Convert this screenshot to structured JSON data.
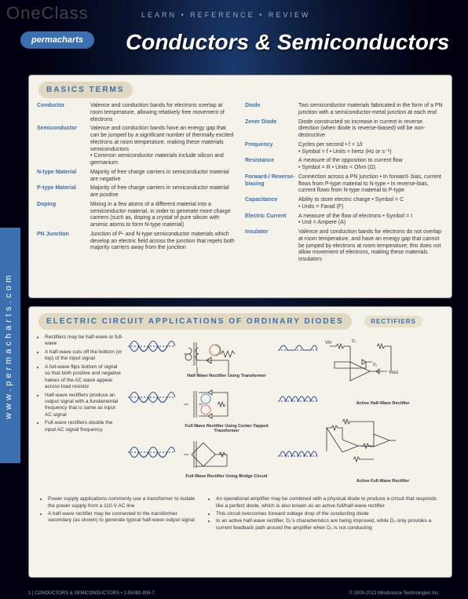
{
  "watermark": "OneClass",
  "nav": "LEARN  •  REFERENCE  •  REVIEW",
  "logo": "permacharts",
  "title": "Conductors & Semiconductors",
  "sidebar": "www.permacharts.com",
  "basics": {
    "header": "BASICS TERMS",
    "left": [
      {
        "label": "Conductor",
        "def": "Valence and conduction bands for electrons overlap at room temperature, allowing relatively free movement of electrons"
      },
      {
        "label": "Semiconductor",
        "def": "Valence and conduction bands have an energy gap that can be jumped by a significant number of thermally excited electrons at room temperature, making these materials semiconductors",
        "sub": "• Common semiconductor materials include silicon and germanium"
      },
      {
        "label": "N-type Material",
        "def": "Majority of free charge carriers in semiconductor material are negative"
      },
      {
        "label": "P-type Material",
        "def": "Majority of free charge carriers in semiconductor material are positive"
      },
      {
        "label": "Doping",
        "def": "Mixing in a few atoms of a different material into a semiconductor material, in order to generate more charge carriers (such as, doping a crystal of pure silicon with arsenic atoms to form N-type material)"
      },
      {
        "label": "PN Junction",
        "def": "Junction of P- and N-type semiconductor materials which develop an electric field across the junction that repels both majority carriers away from the junction"
      }
    ],
    "right": [
      {
        "label": "Diode",
        "def": "Two semiconductor materials fabricated in the form of a PN junction with a semiconductor-metal junction at each end"
      },
      {
        "label": "Zener Diode",
        "def": "Diode constructed so increase in current in reverse direction (when diode is reverse-biased) will be non-destructive"
      },
      {
        "label": "Frequency",
        "def": "Cycles per second • f = 1/t",
        "sub": "• Symbol = f\n• Units = hertz (Hz or s⁻¹)"
      },
      {
        "label": "Resistance",
        "def": "A measure of the opposition to current flow",
        "sub": "• Symbol = R • Units = Ohm (Ω)"
      },
      {
        "label": "Forward-/ Reverse-biasing",
        "def": "Connection across a PN junction • In forward- bias, current flows from P-type material to N-type • In reverse-bias, current flows from N-type material to P-type"
      },
      {
        "label": "Capacitance",
        "def": "Ability to store electric charge • Symbol = C",
        "sub": "• Units = Farad (F)"
      },
      {
        "label": "Electric Current",
        "def": "A measure of the flow of electrons • Symbol = I",
        "sub": "• Unit = Ampere (A)"
      },
      {
        "label": "Insulator",
        "def": "Valence and conduction bands for electrons do not overlap at room temperature, and have an energy gap that cannot be jumped by electrons at room temperature; this does not allow movement of electrons, making these materials insulators"
      }
    ]
  },
  "circuit": {
    "header": "ELECTRIC CIRCUIT APPLICATIONS OF ORDINARY DIODES",
    "sub_header": "RECTIFIERS",
    "bullets": [
      "Rectifiers may be half-wave or full-wave",
      "A half-wave cuts off the bottom (or top) of the input signal",
      "A full-wave flips bottom of signal so that both positive and negative halves of the AC wave appear across load resistor",
      "Half-wave rectifiers produce an output signal with a fundamental frequency that is same as input AC signal",
      "Full-wave rectifiers double the input AC signal frequency"
    ],
    "footer_bullets_left": [
      "Power supply applications commonly use a transformer to isolate the power supply from a 110-V AC line",
      "A half-wave rectifier may be connected to the transformer secondary (as shown) to generate typical half-wave output signal"
    ],
    "footer_bullets_right": [
      "An operational amplifier may be combined with a physical diode to produce a circuit that responds like a perfect diode, which is also known as an active full/half-wave rectifier",
      "This circuit overcomes forward voltage drop of the conducting diode",
      "In an active half-wave rectifier, D₁'s characteristics are being improved, while D₂ only provides a current feedback path around the amplifier when D₁ is not conducting"
    ],
    "diagram_labels": {
      "hw_trans": "Half-Wave Rectifier Using Transformer",
      "fw_center": "Full-Wave Rectifier Using Center-Tapped Transformer",
      "fw_bridge": "Full-Wave Rectifier Using Bridge Circuit",
      "active_hw": "Active Half-Wave Rectifier",
      "active_fw": "Active Full-Wave Rectifier"
    }
  },
  "pagefoot": "1 | CONDUCTORS & SEMICONDUCTORS • 1-55080-806-7",
  "copyright": "© 2000-2013 Mindsource Technologies Inc."
}
